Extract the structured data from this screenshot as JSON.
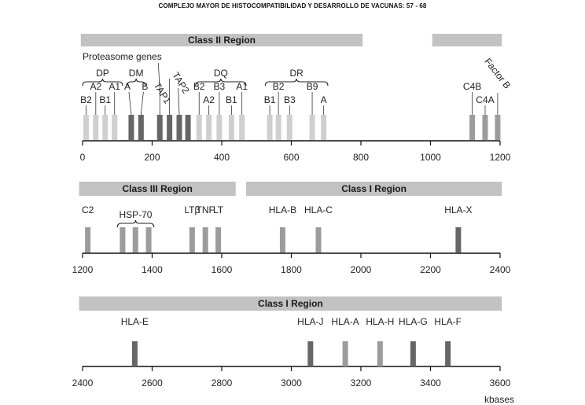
{
  "header": {
    "title": "COMPLEJO MAYOR DE HISTOCOMPATIBILIDAD Y DESARROLLO DE VACUNAS: 57 - 68"
  },
  "colors": {
    "region_bar": "#c2c2c2",
    "gene_light": "#cfcfcf",
    "gene_mid": "#9c9c9c",
    "gene_dark": "#666666",
    "axis": "#111111",
    "text": "#222222"
  },
  "units_label": "kbases",
  "panels": [
    {
      "id": "panel1",
      "axis": {
        "min": 0,
        "max": 1200,
        "ticks": [
          0,
          200,
          400,
          600,
          800,
          1000,
          1200
        ]
      },
      "regions": [
        {
          "label": "Class II Region",
          "from": -5,
          "to": 805
        },
        {
          "label": "",
          "from": 1005,
          "to": 1205
        }
      ],
      "genes": [
        {
          "pos": 10,
          "label": "B2",
          "shade": "light"
        },
        {
          "pos": 38,
          "label": "A2",
          "shade": "light"
        },
        {
          "pos": 65,
          "label": "B1",
          "shade": "light"
        },
        {
          "pos": 92,
          "label": "A1",
          "shade": "light"
        },
        {
          "pos": 140,
          "label": "A",
          "shade": "dark"
        },
        {
          "pos": 168,
          "label": "B",
          "shade": "dark"
        },
        {
          "pos": 222,
          "label": "",
          "shade": "dark"
        },
        {
          "pos": 250,
          "label": "",
          "shade": "dark"
        },
        {
          "pos": 278,
          "label": "",
          "shade": "dark"
        },
        {
          "pos": 303,
          "label": "",
          "shade": "dark"
        },
        {
          "pos": 335,
          "label": "B2",
          "shade": "light"
        },
        {
          "pos": 363,
          "label": "A2",
          "shade": "light"
        },
        {
          "pos": 393,
          "label": "B3",
          "shade": "light"
        },
        {
          "pos": 428,
          "label": "B1",
          "shade": "light"
        },
        {
          "pos": 458,
          "label": "A1",
          "shade": "light"
        },
        {
          "pos": 538,
          "label": "B1",
          "shade": "light"
        },
        {
          "pos": 563,
          "label": "B2",
          "shade": "light"
        },
        {
          "pos": 595,
          "label": "B3",
          "shade": "light"
        },
        {
          "pos": 660,
          "label": "B9",
          "shade": "light"
        },
        {
          "pos": 693,
          "label": "A",
          "shade": "light"
        },
        {
          "pos": 1120,
          "label": "C4B",
          "shade": "mid"
        },
        {
          "pos": 1157,
          "label": "C4A",
          "shade": "mid"
        },
        {
          "pos": 1193,
          "label": "",
          "shade": "mid"
        }
      ],
      "groups": [
        {
          "label": "DP",
          "from": 0,
          "to": 115
        },
        {
          "label": "DM",
          "from": 128,
          "to": 180
        },
        {
          "label": "DQ",
          "from": 325,
          "to": 470
        },
        {
          "label": "DR",
          "from": 525,
          "to": 705
        }
      ],
      "slanted_labels": [
        {
          "text": "TAP1",
          "pos": 222
        },
        {
          "text": "TAP2",
          "pos": 275
        },
        {
          "text": "Factor B",
          "pos": 1163
        }
      ],
      "proteasome_label": "Proteasome genes"
    },
    {
      "id": "panel2",
      "axis": {
        "min": 1200,
        "max": 2400,
        "ticks": [
          1200,
          1400,
          1600,
          1800,
          2000,
          2200,
          2400
        ]
      },
      "regions": [
        {
          "label": "Class III Region",
          "from": 1190,
          "to": 1640
        },
        {
          "label": "Class I Region",
          "from": 1670,
          "to": 2405
        }
      ],
      "genes": [
        {
          "pos": 1215,
          "label": "C2",
          "shade": "mid"
        },
        {
          "pos": 1315,
          "label": "",
          "shade": "mid"
        },
        {
          "pos": 1352,
          "label": "",
          "shade": "mid"
        },
        {
          "pos": 1390,
          "label": "",
          "shade": "mid"
        },
        {
          "pos": 1515,
          "label": "LTβ",
          "shade": "mid"
        },
        {
          "pos": 1553,
          "label": "TNF",
          "shade": "mid"
        },
        {
          "pos": 1590,
          "label": "LT",
          "shade": "mid"
        },
        {
          "pos": 1775,
          "label": "HLA-B",
          "shade": "mid"
        },
        {
          "pos": 1878,
          "label": "HLA-C",
          "shade": "mid"
        },
        {
          "pos": 2280,
          "label": "HLA-X",
          "shade": "dark"
        }
      ],
      "groups": [
        {
          "label": "HSP-70",
          "from": 1300,
          "to": 1405
        }
      ]
    },
    {
      "id": "panel3",
      "axis": {
        "min": 2400,
        "max": 3600,
        "ticks": [
          2400,
          2600,
          2800,
          3000,
          3200,
          3400,
          3600
        ]
      },
      "regions": [
        {
          "label": "Class I Region",
          "from": 2390,
          "to": 3605
        }
      ],
      "genes": [
        {
          "pos": 2550,
          "label": "HLA-E",
          "shade": "dark"
        },
        {
          "pos": 3055,
          "label": "HLA-J",
          "shade": "dark"
        },
        {
          "pos": 3155,
          "label": "HLA-A",
          "shade": "mid"
        },
        {
          "pos": 3255,
          "label": "HLA-H",
          "shade": "mid"
        },
        {
          "pos": 3350,
          "label": "HLA-G",
          "shade": "dark"
        },
        {
          "pos": 3450,
          "label": "HLA-F",
          "shade": "dark"
        }
      ],
      "groups": []
    }
  ]
}
